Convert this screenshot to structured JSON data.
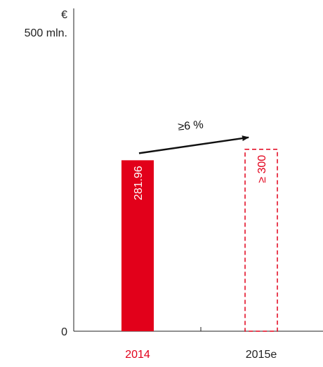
{
  "chart_data": {
    "type": "bar",
    "categories": [
      "2014",
      "2015e"
    ],
    "values": [
      281.96,
      300
    ],
    "bar_labels": [
      "281.96",
      "≥ 300"
    ],
    "bar_styles": [
      "solid",
      "dashed-outline"
    ],
    "category_colors": [
      "#e2001a",
      "#222222"
    ],
    "ylim": [
      0,
      500
    ],
    "y_axis_top_label": [
      "€",
      "500 mln."
    ],
    "y_axis_zero_label": "0",
    "growth_annotation": "≥6 %",
    "grid": false,
    "colors": {
      "bar": "#e2001a",
      "axis": "#222222",
      "arrow": "#111111"
    }
  }
}
